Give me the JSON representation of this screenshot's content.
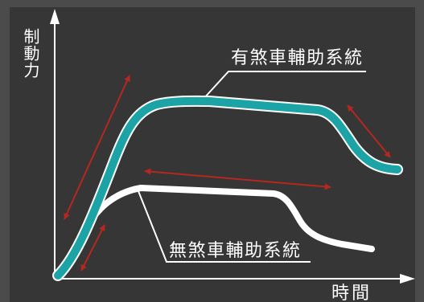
{
  "diagram": {
    "y_axis_label": "制動力",
    "x_axis_label": "時間",
    "curves": {
      "with_brake_assist": {
        "label": "有煞車輔助系統",
        "color": "#1ca3a6"
      },
      "without_brake_assist": {
        "label": "無煞車輔助系統",
        "color": "#ffffff"
      }
    },
    "arrow_color": "#b5281f"
  },
  "colors": {
    "frame": "#4b4b4b",
    "panel": "#363636",
    "axis": "#ffffff"
  }
}
